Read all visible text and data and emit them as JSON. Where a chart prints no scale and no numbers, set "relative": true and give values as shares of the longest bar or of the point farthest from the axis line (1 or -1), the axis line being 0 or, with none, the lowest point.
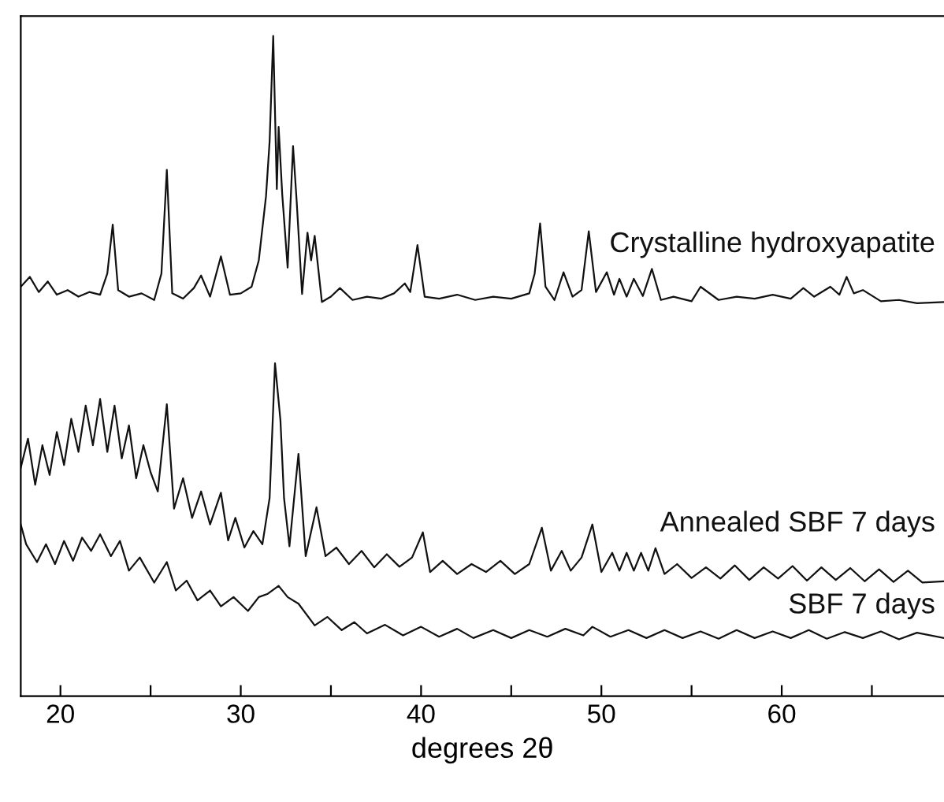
{
  "chart_data": {
    "type": "line",
    "relative": true,
    "xlabel": "degrees 2θ",
    "xlim": [
      17.8,
      69
    ],
    "xticks": [
      20,
      {
        "value": 25,
        "label": null
      },
      30,
      {
        "value": 35,
        "label": null
      },
      40,
      {
        "value": 45,
        "label": null
      },
      50,
      {
        "value": 55,
        "label": null
      },
      60,
      {
        "value": 65,
        "label": null
      }
    ],
    "grid": false,
    "legend": false,
    "marker": "none",
    "line_style": "solid",
    "series": [
      {
        "name": "Crystalline hydroxyapatite",
        "color": "#111111",
        "x": [
          17.8,
          18.3,
          18.8,
          19.3,
          19.8,
          20.4,
          21.0,
          21.6,
          22.2,
          22.6,
          22.9,
          23.2,
          23.8,
          24.5,
          25.2,
          25.6,
          25.9,
          26.2,
          26.8,
          27.4,
          27.8,
          28.3,
          28.9,
          29.4,
          30.0,
          30.6,
          31.0,
          31.4,
          31.6,
          31.8,
          32.0,
          32.1,
          32.3,
          32.6,
          32.9,
          33.1,
          33.4,
          33.7,
          33.9,
          34.1,
          34.5,
          35.0,
          35.5,
          36.2,
          37.0,
          37.8,
          38.5,
          39.1,
          39.4,
          39.8,
          40.2,
          41.0,
          42.0,
          43.0,
          44.0,
          45.0,
          46.0,
          46.3,
          46.6,
          46.9,
          47.4,
          47.9,
          48.4,
          48.9,
          49.3,
          49.7,
          50.3,
          50.7,
          51.0,
          51.4,
          51.8,
          52.3,
          52.8,
          53.3,
          54.0,
          55.0,
          55.5,
          56.5,
          57.5,
          58.5,
          59.5,
          60.5,
          61.2,
          61.8,
          62.7,
          63.2,
          63.6,
          64.0,
          64.5,
          65.5,
          66.5,
          67.5,
          69.0
        ],
        "values": [
          0.62,
          0.635,
          0.612,
          0.628,
          0.608,
          0.615,
          0.605,
          0.612,
          0.608,
          0.64,
          0.714,
          0.615,
          0.605,
          0.61,
          0.6,
          0.64,
          0.797,
          0.61,
          0.602,
          0.618,
          0.637,
          0.605,
          0.666,
          0.608,
          0.61,
          0.62,
          0.66,
          0.757,
          0.84,
          1.0,
          0.768,
          0.862,
          0.76,
          0.649,
          0.833,
          0.75,
          0.609,
          0.702,
          0.66,
          0.697,
          0.597,
          0.605,
          0.618,
          0.6,
          0.605,
          0.602,
          0.61,
          0.625,
          0.612,
          0.683,
          0.605,
          0.602,
          0.608,
          0.6,
          0.605,
          0.602,
          0.61,
          0.64,
          0.716,
          0.62,
          0.6,
          0.642,
          0.605,
          0.615,
          0.704,
          0.612,
          0.642,
          0.608,
          0.632,
          0.605,
          0.632,
          0.606,
          0.647,
          0.6,
          0.605,
          0.598,
          0.62,
          0.6,
          0.605,
          0.602,
          0.608,
          0.602,
          0.618,
          0.605,
          0.62,
          0.608,
          0.635,
          0.61,
          0.615,
          0.598,
          0.6,
          0.595,
          0.597
        ]
      },
      {
        "name": "Annealed SBF 7 days",
        "color": "#111111",
        "x": [
          17.8,
          18.2,
          18.6,
          19.0,
          19.4,
          19.8,
          20.2,
          20.6,
          21.0,
          21.4,
          21.8,
          22.2,
          22.6,
          23.0,
          23.4,
          23.8,
          24.2,
          24.6,
          25.0,
          25.4,
          25.9,
          26.3,
          26.8,
          27.3,
          27.8,
          28.3,
          28.9,
          29.3,
          29.7,
          30.2,
          30.7,
          31.2,
          31.6,
          31.9,
          32.2,
          32.4,
          32.7,
          33.2,
          33.6,
          34.2,
          34.7,
          35.3,
          36.0,
          36.7,
          37.4,
          38.1,
          38.8,
          39.5,
          40.1,
          40.5,
          41.2,
          42.0,
          42.8,
          43.6,
          44.4,
          45.2,
          46.0,
          46.7,
          47.2,
          47.8,
          48.3,
          48.9,
          49.5,
          50.0,
          50.6,
          51.0,
          51.4,
          51.8,
          52.2,
          52.6,
          53.0,
          53.5,
          54.2,
          55.0,
          55.8,
          56.6,
          57.4,
          58.2,
          59.0,
          59.8,
          60.6,
          61.4,
          62.2,
          63.0,
          63.8,
          64.6,
          65.4,
          66.2,
          67.0,
          67.8,
          69.0
        ],
        "values": [
          0.346,
          0.39,
          0.32,
          0.38,
          0.335,
          0.4,
          0.35,
          0.42,
          0.37,
          0.44,
          0.38,
          0.45,
          0.37,
          0.44,
          0.36,
          0.41,
          0.33,
          0.38,
          0.339,
          0.31,
          0.442,
          0.284,
          0.33,
          0.27,
          0.31,
          0.26,
          0.308,
          0.236,
          0.27,
          0.225,
          0.25,
          0.23,
          0.3,
          0.504,
          0.418,
          0.3,
          0.227,
          0.367,
          0.212,
          0.286,
          0.212,
          0.225,
          0.2,
          0.22,
          0.195,
          0.215,
          0.196,
          0.21,
          0.248,
          0.188,
          0.205,
          0.185,
          0.2,
          0.188,
          0.205,
          0.185,
          0.2,
          0.255,
          0.19,
          0.22,
          0.19,
          0.21,
          0.26,
          0.188,
          0.217,
          0.19,
          0.217,
          0.19,
          0.217,
          0.19,
          0.224,
          0.185,
          0.2,
          0.179,
          0.195,
          0.178,
          0.198,
          0.176,
          0.195,
          0.178,
          0.197,
          0.175,
          0.195,
          0.176,
          0.194,
          0.174,
          0.192,
          0.173,
          0.19,
          0.172,
          0.174
        ]
      },
      {
        "name": "SBF 7 days",
        "color": "#111111",
        "x": [
          17.8,
          18.1,
          18.7,
          19.2,
          19.7,
          20.2,
          20.7,
          21.2,
          21.7,
          22.2,
          22.8,
          23.3,
          23.8,
          24.4,
          25.2,
          25.9,
          26.4,
          27.0,
          27.6,
          28.3,
          28.9,
          29.6,
          30.4,
          31.0,
          31.5,
          32.1,
          32.6,
          33.2,
          34.1,
          34.8,
          35.6,
          36.3,
          37.0,
          38.0,
          39.0,
          40.0,
          41.0,
          42.0,
          42.9,
          44.0,
          45.0,
          46.0,
          47.0,
          48.0,
          49.0,
          49.5,
          50.5,
          51.5,
          52.5,
          53.5,
          54.5,
          55.5,
          56.5,
          57.5,
          58.5,
          59.5,
          60.5,
          61.5,
          62.5,
          63.5,
          64.5,
          65.5,
          66.5,
          67.5,
          69.0
        ],
        "values": [
          0.26,
          0.23,
          0.203,
          0.23,
          0.2,
          0.235,
          0.205,
          0.24,
          0.22,
          0.245,
          0.212,
          0.235,
          0.19,
          0.21,
          0.172,
          0.203,
          0.16,
          0.175,
          0.145,
          0.16,
          0.136,
          0.15,
          0.129,
          0.15,
          0.155,
          0.167,
          0.15,
          0.14,
          0.107,
          0.12,
          0.1,
          0.112,
          0.095,
          0.108,
          0.092,
          0.105,
          0.09,
          0.102,
          0.088,
          0.1,
          0.088,
          0.1,
          0.09,
          0.102,
          0.092,
          0.105,
          0.09,
          0.1,
          0.088,
          0.1,
          0.088,
          0.098,
          0.087,
          0.1,
          0.088,
          0.098,
          0.088,
          0.1,
          0.087,
          0.097,
          0.088,
          0.098,
          0.086,
          0.096,
          0.088
        ]
      }
    ]
  }
}
